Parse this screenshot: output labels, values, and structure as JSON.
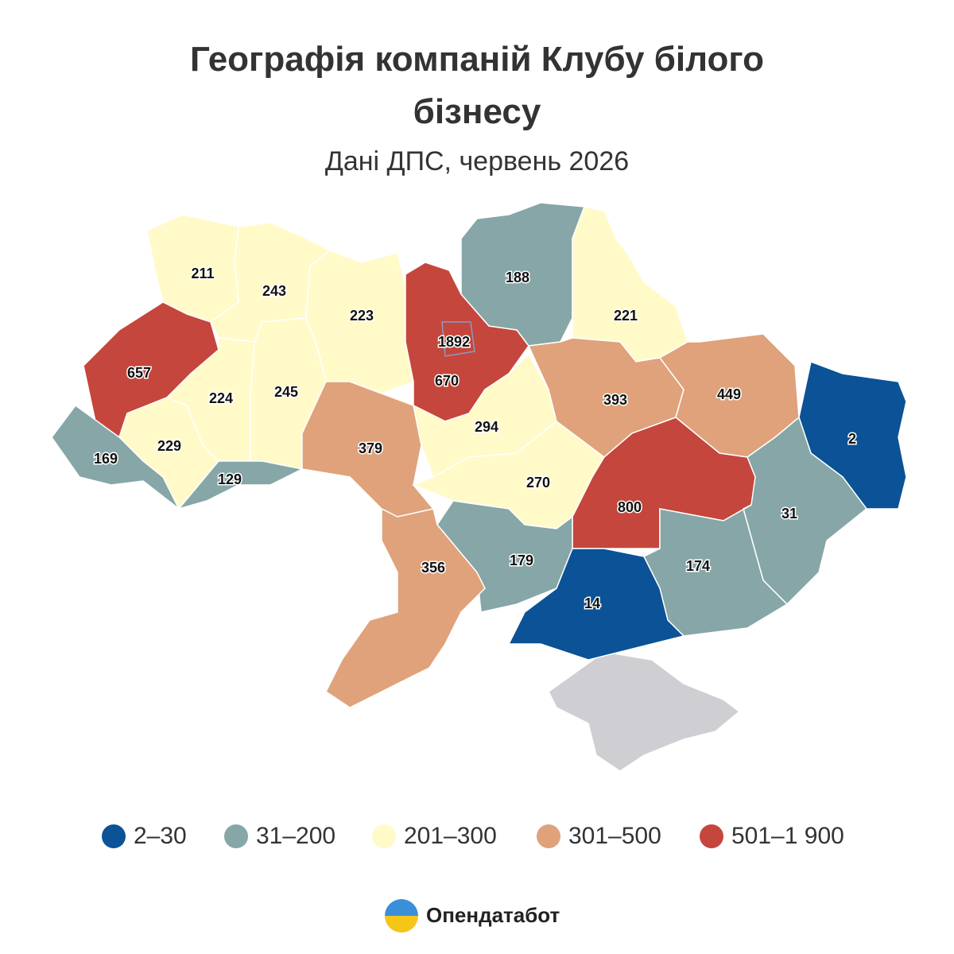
{
  "title": "Географія компаній Клубу білого бізнесу",
  "subtitle": "Дані ДПС, червень 2026",
  "legend": [
    {
      "label": "2–30",
      "color": "#0b5296",
      "min": 2,
      "max": 30
    },
    {
      "label": "31–200",
      "color": "#86a6a7",
      "min": 31,
      "max": 200
    },
    {
      "label": "201–300",
      "color": "#fffac8",
      "min": 201,
      "max": 300
    },
    {
      "label": "301–500",
      "color": "#dfa27b",
      "min": 301,
      "max": 500
    },
    {
      "label": "501–1 900",
      "color": "#c5463c",
      "min": 501,
      "max": 1900
    }
  ],
  "regions": [
    211,
    243,
    223,
    670,
    1892,
    188,
    221,
    657,
    224,
    245,
    229,
    169,
    129,
    379,
    294,
    270,
    393,
    449,
    2,
    31,
    800,
    174,
    179,
    356,
    14
  ],
  "brand": "Опендатабот"
}
